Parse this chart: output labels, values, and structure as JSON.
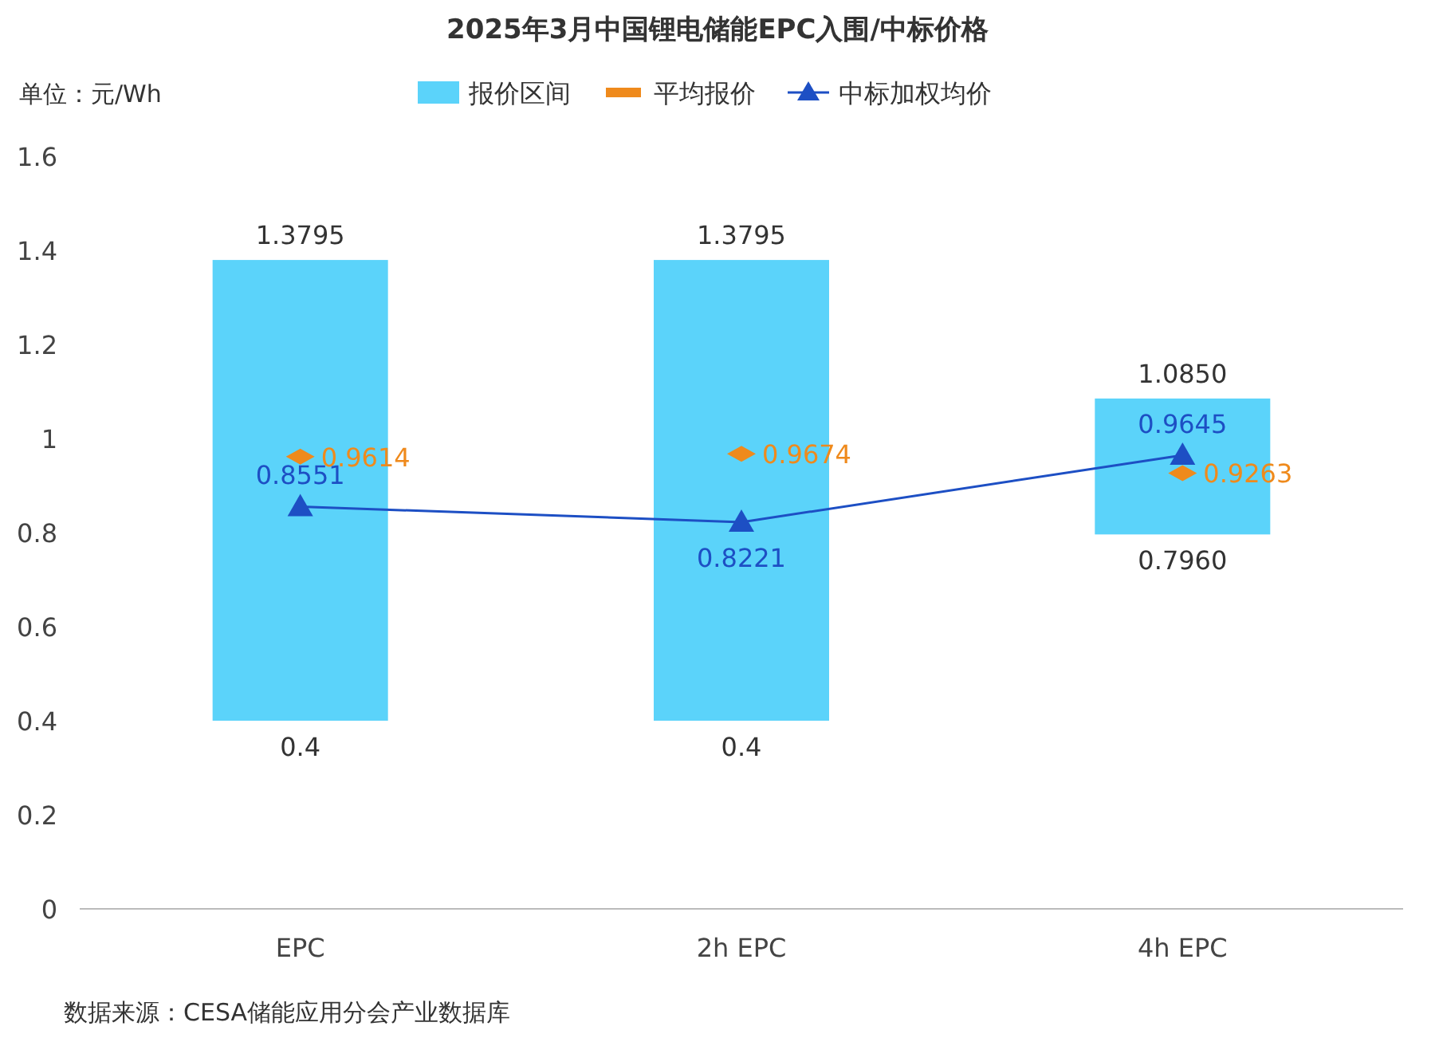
{
  "chart_data": {
    "type": "bar",
    "title": "2025年3月中国锂电储能EPC入围/中标价格",
    "ylabel": "单位：元/Wh",
    "categories": [
      "EPC",
      "2h EPC",
      "4h EPC"
    ],
    "ylim": [
      0,
      1.6
    ],
    "yticks": [
      0,
      0.2,
      0.4,
      0.6,
      0.8,
      1,
      1.2,
      1.4,
      1.6
    ],
    "grid": false,
    "legend": "top",
    "series": [
      {
        "name": "报价区间",
        "color": "#5bd3fa",
        "base": [
          0.4,
          0.4,
          0.796
        ],
        "values": [
          0.9795,
          0.9795,
          0.289
        ]
      },
      {
        "name": "平均报价",
        "type": "scatter",
        "color": "#ef8a1c",
        "values": [
          0.9614,
          0.9674,
          0.9263
        ],
        "value_labels": [
          "0.9614",
          "0.9674",
          "0.9263"
        ]
      },
      {
        "name": "中标加权均价",
        "type": "line",
        "color": "#1d4fc4",
        "marker": "triangle",
        "values": [
          0.8551,
          0.8221,
          0.9645
        ],
        "value_labels": [
          "0.8551",
          "0.8221",
          "0.9645"
        ]
      }
    ],
    "annotations": [
      "1.3795",
      "0.4",
      "1.3795",
      "0.4",
      "1.0850",
      "0.7960",
      "数据来源：CESA储能应用分会产业数据库"
    ]
  }
}
